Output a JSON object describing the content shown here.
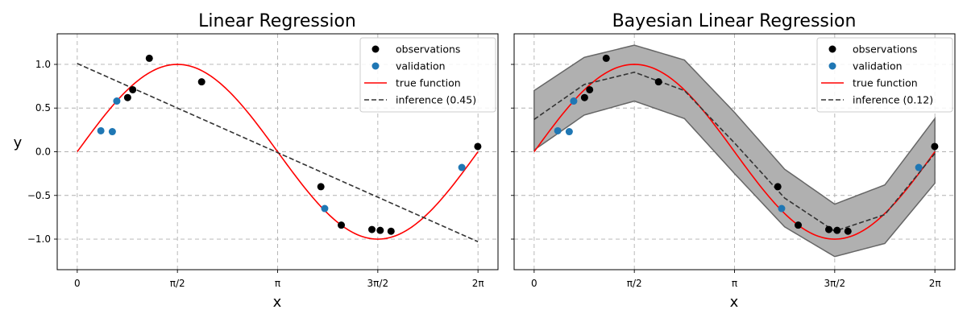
{
  "chart_data": [
    {
      "type": "scatter",
      "title": "Linear Regression",
      "xlabel": "x",
      "ylabel": "y",
      "xlim": [
        -0.314,
        6.597
      ],
      "ylim": [
        -1.35,
        1.35
      ],
      "xticks": [
        {
          "value": 0,
          "label": "0"
        },
        {
          "value": 1.5708,
          "label": "π/2"
        },
        {
          "value": 3.1416,
          "label": "π"
        },
        {
          "value": 4.7124,
          "label": "3π/2"
        },
        {
          "value": 6.2832,
          "label": "2π"
        }
      ],
      "yticks": [
        {
          "value": 1.0,
          "label": "1.0"
        },
        {
          "value": 0.5,
          "label": "0.5"
        },
        {
          "value": 0.0,
          "label": "0.0"
        },
        {
          "value": -0.5,
          "label": "−0.5"
        },
        {
          "value": -1.0,
          "label": "−1.0"
        }
      ],
      "grid": true,
      "legend_position": "top-right",
      "legend": [
        "observations",
        "validation",
        "true function",
        "inference (0.45)"
      ],
      "observations": {
        "x": [
          0.87,
          1.13,
          0.79,
          1.95,
          3.82,
          4.14,
          4.62,
          4.75,
          4.92,
          6.28
        ],
        "y": [
          0.71,
          1.07,
          0.62,
          0.8,
          -0.4,
          -0.84,
          -0.89,
          -0.9,
          -0.91,
          0.06
        ]
      },
      "validation": {
        "x": [
          0.37,
          0.55,
          0.62,
          3.88,
          6.03
        ],
        "y": [
          0.24,
          0.23,
          0.58,
          -0.65,
          -0.18
        ]
      },
      "true_function": "sin(x) on [0, 2π]",
      "inference": {
        "x": [
          0,
          6.2832
        ],
        "y": [
          1.01,
          -1.03
        ]
      },
      "band": null
    },
    {
      "type": "scatter",
      "title": "Bayesian Linear Regression",
      "xlabel": "x",
      "ylabel": "",
      "xlim": [
        -0.314,
        6.597
      ],
      "ylim": [
        -1.35,
        1.35
      ],
      "xticks": [
        {
          "value": 0,
          "label": "0"
        },
        {
          "value": 1.5708,
          "label": "π/2"
        },
        {
          "value": 3.1416,
          "label": "π"
        },
        {
          "value": 4.7124,
          "label": "3π/2"
        },
        {
          "value": 6.2832,
          "label": "2π"
        }
      ],
      "yticks": [],
      "grid": true,
      "legend_position": "top-right",
      "legend": [
        "observations",
        "validation",
        "true function",
        "inference (0.12)"
      ],
      "observations": {
        "x": [
          0.87,
          1.13,
          0.79,
          1.95,
          3.82,
          4.14,
          4.62,
          4.75,
          4.92,
          6.28
        ],
        "y": [
          0.71,
          1.07,
          0.62,
          0.8,
          -0.4,
          -0.84,
          -0.89,
          -0.9,
          -0.91,
          0.06
        ]
      },
      "validation": {
        "x": [
          0.37,
          0.55,
          0.62,
          3.88,
          6.03
        ],
        "y": [
          0.24,
          0.23,
          0.58,
          -0.65,
          -0.18
        ]
      },
      "true_function": "sin(x) on [0, 2π]",
      "inference": {
        "x": [
          0,
          0.785,
          1.571,
          2.356,
          3.142,
          3.927,
          4.712,
          5.498,
          6.283
        ],
        "y": [
          0.37,
          0.77,
          0.91,
          0.7,
          0.1,
          -0.53,
          -0.91,
          -0.72,
          -0.02
        ]
      },
      "band": {
        "x": [
          0,
          0.785,
          1.571,
          2.356,
          3.142,
          3.927,
          4.712,
          5.498,
          6.283
        ],
        "upper": [
          0.7,
          1.08,
          1.22,
          1.05,
          0.45,
          -0.2,
          -0.6,
          -0.38,
          0.38
        ],
        "lower": [
          0.02,
          0.42,
          0.58,
          0.38,
          -0.25,
          -0.86,
          -1.2,
          -1.05,
          -0.36
        ]
      }
    }
  ],
  "colors": {
    "observations": "#000000",
    "validation": "#1f77b4",
    "true_function": "#ff0000",
    "inference": "#333333",
    "band_fill": "#b0b0b0",
    "band_edge": "#666666",
    "grid": "#b0b0b0"
  }
}
